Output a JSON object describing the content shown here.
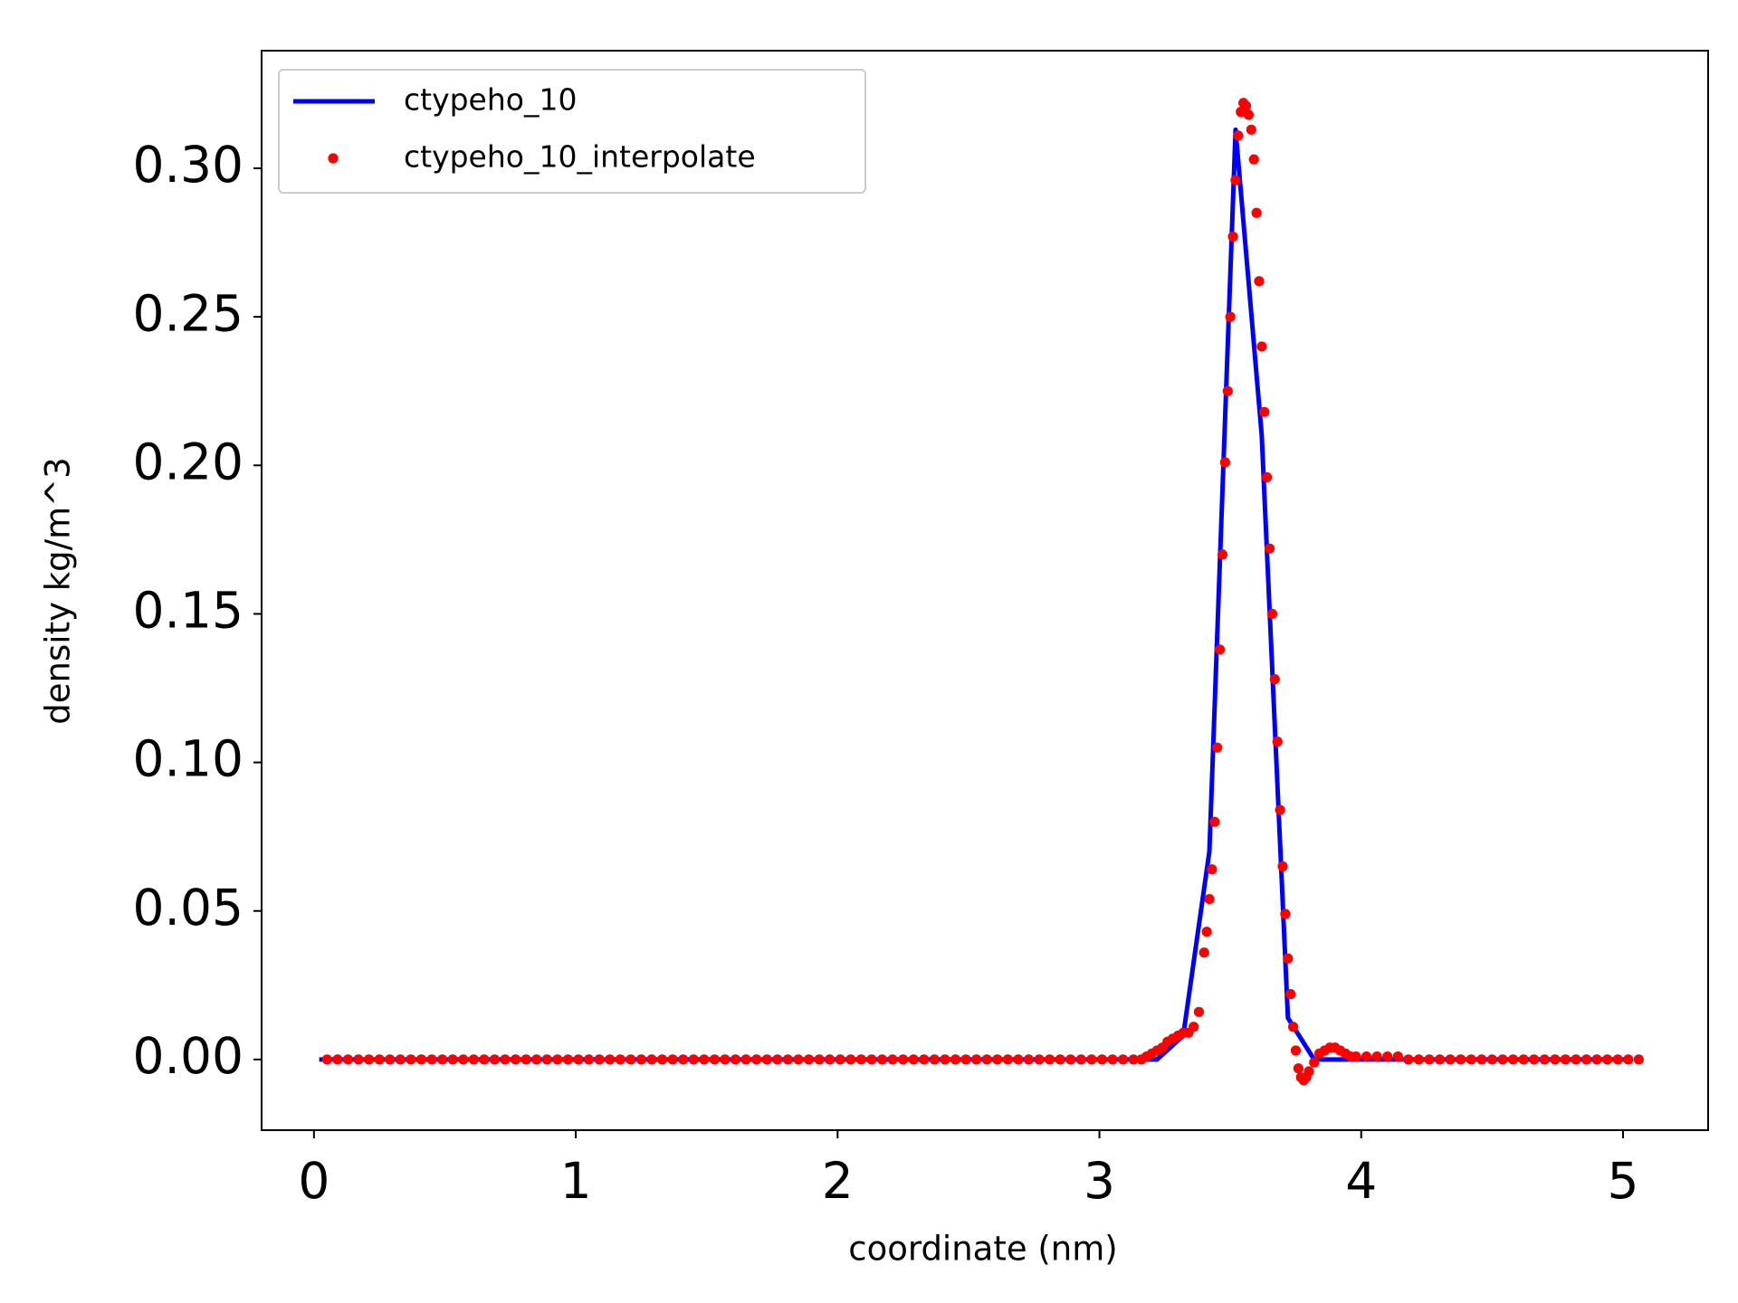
{
  "chart_data": {
    "type": "line",
    "xlabel": "coordinate (nm)",
    "ylabel": "density kg/m^3",
    "xlim": [
      -0.2,
      5.325
    ],
    "ylim": [
      -0.0238,
      0.3396
    ],
    "xticks": [
      0,
      1,
      2,
      3,
      4,
      5
    ],
    "yticks": [
      {
        "value": 0,
        "label": "0.00"
      },
      {
        "value": 0.05,
        "label": "0.05"
      },
      {
        "value": 0.1,
        "label": "0.10"
      },
      {
        "value": 0.15,
        "label": "0.15"
      },
      {
        "value": 0.2,
        "label": "0.20"
      },
      {
        "value": 0.25,
        "label": "0.25"
      },
      {
        "value": 0.3,
        "label": "0.30"
      }
    ],
    "grid": false,
    "legend": "upper left",
    "series": [
      {
        "name": "ctypeho_10",
        "color": "#0000ff",
        "style": "line",
        "x": [
          0.02,
          0.12,
          0.22,
          0.32,
          0.42,
          0.52,
          0.62,
          0.72,
          0.82,
          0.92,
          1.02,
          1.12,
          1.22,
          1.32,
          1.42,
          1.52,
          1.62,
          1.72,
          1.82,
          1.92,
          2.02,
          2.12,
          2.22,
          2.32,
          2.42,
          2.52,
          2.62,
          2.72,
          2.82,
          2.92,
          3.02,
          3.12,
          3.22,
          3.32,
          3.42,
          3.52,
          3.62,
          3.72,
          3.82,
          3.92,
          4.02,
          4.12,
          4.22,
          4.32,
          4.42,
          4.52,
          4.62,
          4.72,
          4.82,
          4.92,
          5.02
        ],
        "values": [
          0,
          0,
          0,
          0,
          0,
          0,
          0,
          0,
          0,
          0,
          0,
          0,
          0,
          0,
          0,
          0,
          0,
          0,
          0,
          0,
          0,
          0,
          0,
          0,
          0,
          0,
          0,
          0,
          0,
          0,
          0,
          0,
          0,
          0.008,
          0.07,
          0.313,
          0.21,
          0.014,
          0,
          0,
          0,
          0,
          0,
          0,
          0,
          0,
          0,
          0,
          0,
          0,
          0
        ]
      },
      {
        "name": "ctypeho_10_interpolate",
        "color": "#ff0000",
        "style": "dots",
        "x": [
          0.05,
          0.09,
          0.13,
          0.17,
          0.21,
          0.25,
          0.29,
          0.33,
          0.37,
          0.41,
          0.45,
          0.49,
          0.53,
          0.57,
          0.61,
          0.65,
          0.69,
          0.73,
          0.77,
          0.81,
          0.85,
          0.89,
          0.93,
          0.97,
          1.01,
          1.05,
          1.09,
          1.13,
          1.17,
          1.21,
          1.25,
          1.29,
          1.33,
          1.37,
          1.41,
          1.45,
          1.49,
          1.53,
          1.57,
          1.61,
          1.65,
          1.69,
          1.73,
          1.77,
          1.81,
          1.85,
          1.89,
          1.93,
          1.97,
          2.01,
          2.05,
          2.09,
          2.13,
          2.17,
          2.21,
          2.25,
          2.29,
          2.33,
          2.37,
          2.41,
          2.45,
          2.49,
          2.53,
          2.57,
          2.61,
          2.65,
          2.69,
          2.73,
          2.77,
          2.81,
          2.85,
          2.89,
          2.93,
          2.97,
          3.01,
          3.05,
          3.09,
          3.13,
          3.16,
          3.18,
          3.2,
          3.22,
          3.24,
          3.26,
          3.28,
          3.3,
          3.32,
          3.34,
          3.36,
          3.38,
          3.4,
          3.41,
          3.42,
          3.43,
          3.44,
          3.45,
          3.46,
          3.47,
          3.48,
          3.49,
          3.5,
          3.51,
          3.52,
          3.53,
          3.54,
          3.55,
          3.56,
          3.57,
          3.58,
          3.59,
          3.6,
          3.61,
          3.62,
          3.63,
          3.64,
          3.65,
          3.66,
          3.67,
          3.68,
          3.69,
          3.7,
          3.71,
          3.72,
          3.73,
          3.74,
          3.75,
          3.76,
          3.77,
          3.78,
          3.79,
          3.8,
          3.82,
          3.84,
          3.86,
          3.88,
          3.9,
          3.92,
          3.94,
          3.96,
          3.98,
          4.02,
          4.06,
          4.1,
          4.14,
          4.18,
          4.22,
          4.26,
          4.3,
          4.34,
          4.38,
          4.42,
          4.46,
          4.5,
          4.54,
          4.58,
          4.62,
          4.66,
          4.7,
          4.74,
          4.78,
          4.82,
          4.86,
          4.9,
          4.94,
          4.98,
          5.02,
          5.06
        ],
        "values": [
          0,
          0,
          0,
          0,
          0,
          0,
          0,
          0,
          0,
          0,
          0,
          0,
          0,
          0,
          0,
          0,
          0,
          0,
          0,
          0,
          0,
          0,
          0,
          0,
          0,
          0,
          0,
          0,
          0,
          0,
          0,
          0,
          0,
          0,
          0,
          0,
          0,
          0,
          0,
          0,
          0,
          0,
          0,
          0,
          0,
          0,
          0,
          0,
          0,
          0,
          0,
          0,
          0,
          0,
          0,
          0,
          0,
          0,
          0,
          0,
          0,
          0,
          0,
          0,
          0,
          0,
          0,
          0,
          0,
          0,
          0,
          0,
          0,
          0,
          0,
          0,
          0,
          0,
          0,
          0.001,
          0.002,
          0.003,
          0.004,
          0.006,
          0.007,
          0.008,
          0.009,
          0.009,
          0.011,
          0.016,
          0.036,
          0.043,
          0.054,
          0.064,
          0.08,
          0.105,
          0.138,
          0.17,
          0.201,
          0.225,
          0.25,
          0.277,
          0.296,
          0.311,
          0.319,
          0.322,
          0.321,
          0.318,
          0.313,
          0.303,
          0.285,
          0.262,
          0.24,
          0.218,
          0.196,
          0.172,
          0.15,
          0.128,
          0.107,
          0.084,
          0.065,
          0.049,
          0.034,
          0.022,
          0.011,
          0.003,
          -0.003,
          -0.006,
          -0.007,
          -0.006,
          -0.004,
          -0.001,
          0.002,
          0.003,
          0.004,
          0.004,
          0.003,
          0.002,
          0.001,
          0.001,
          0.001,
          0.001,
          0.001,
          0.001,
          0,
          0,
          0,
          0,
          0,
          0,
          0,
          0,
          0,
          0,
          0,
          0,
          0,
          0,
          0,
          0,
          0,
          0,
          0,
          0,
          0,
          0,
          0
        ]
      }
    ]
  }
}
